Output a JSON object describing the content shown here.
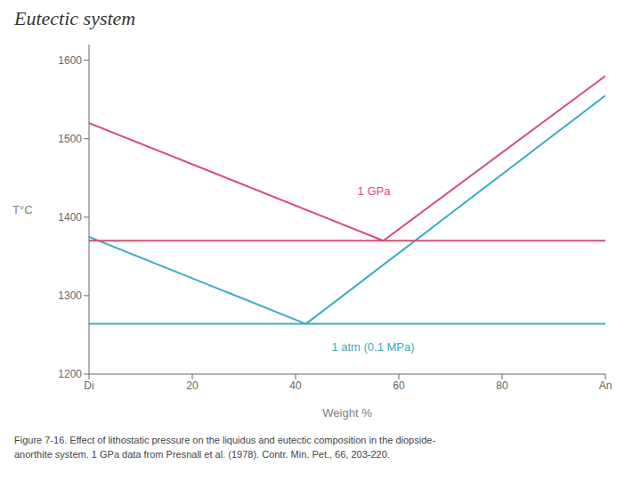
{
  "chart_data": {
    "type": "line",
    "title": "Eutectic system",
    "xlabel": "Weight %",
    "ylabel": "T°C",
    "xlim": [
      0,
      100
    ],
    "ylim": [
      1200,
      1620
    ],
    "xticks": [
      {
        "value": 0,
        "label": "Di"
      },
      20,
      40,
      60,
      80,
      {
        "value": 100,
        "label": "An"
      }
    ],
    "yticks": [
      1200,
      1300,
      1400,
      1500,
      1600
    ],
    "grid": false,
    "series": [
      {
        "color": "#3aacbe",
        "x": [
          0,
          42
        ],
        "values": [
          1375,
          1264
        ]
      },
      {
        "color": "#3aacbe",
        "x": [
          42,
          100
        ],
        "values": [
          1264,
          1555
        ]
      },
      {
        "color": "#3aacbe",
        "x": [
          0,
          100
        ],
        "values": [
          1264,
          1264
        ]
      },
      {
        "color": "#d45070",
        "x": [
          0,
          57
        ],
        "values": [
          1520,
          1370
        ]
      },
      {
        "color": "#d45070",
        "x": [
          57,
          100
        ],
        "values": [
          1370,
          1580
        ]
      },
      {
        "color": "#d45070",
        "x": [
          0,
          100
        ],
        "values": [
          1370,
          1370
        ]
      }
    ],
    "annotations": [
      {
        "text": "1 atm (0.1 MPa)",
        "x": 55,
        "y": 1243,
        "color": "#3aacbe"
      },
      {
        "text": "1 GPa",
        "x": 52,
        "y": 1425,
        "color": "#d45070"
      }
    ],
    "caption": [
      "Figure 7-16. Effect of lithostatic pressure on the liquidus and eutectic composition in the diopside-",
      "anorthite system. 1 GPa data from Presnall et al. (1978). Contr. Min. Pet., 66, 203-220."
    ]
  }
}
